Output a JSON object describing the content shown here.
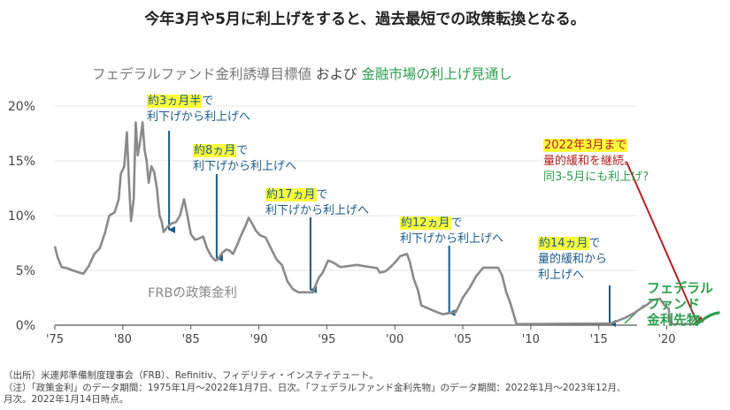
{
  "headline": "今年3月や5月に利上げをすると、過去最短での政策転換となる。",
  "chart_title": {
    "part1": "フェデラルファンド金利誘導目標値",
    "part2": "および",
    "part3": "金融市場の利上げ見通し"
  },
  "colors": {
    "policy_rate_line": "#8a8a8a",
    "futures_line": "#2e9e4f",
    "arrow_blue": "#1a5a86",
    "arrow_red": "#b32121",
    "highlight": "#ffff3a",
    "axis": "#555555"
  },
  "annotations": [
    {
      "highlight": "約3ヵ月半",
      "after": "で",
      "line2": "利下げから利上げへ"
    },
    {
      "highlight": "約8ヵ月",
      "after": "で",
      "line2": "利下げから利上げへ"
    },
    {
      "highlight": "約17ヵ月",
      "after": "で",
      "line2": "利下げから利上げへ"
    },
    {
      "highlight": "約12ヵ月",
      "after": "で",
      "line2": "利下げから利上げへ"
    },
    {
      "highlight": "約14ヵ月",
      "after": "で",
      "line2": "量的緩和から",
      "line3": "利上げへ"
    }
  ],
  "red_annotation": {
    "line1": "2022年3月まで",
    "line2": "量的緩和を継続。",
    "line3": "同3-5月にも利上げ?"
  },
  "series_labels": {
    "policy_rate": "FRBの政策金利",
    "futures_line1": "フェデラル",
    "futures_line2": "ファンド",
    "futures_line3": "金利先物"
  },
  "notes": {
    "source": "（出所）米連邦準備制度理事会（FRB）、Refinitiv、フィデリティ・インスティテュート。",
    "note1": "（注）「政策金利」のデータ期間：1975年1月～2022年1月7日、日次。「フェデラルファンド金利先物」のデータ期間：2022年1月～2023年12月、",
    "note2": "月次。2022年1月14日時点。"
  },
  "chart_data": {
    "type": "line",
    "title": "フェデラルファンド金利誘導目標値 および 金融市場の利上げ見通し",
    "xlabel": "",
    "ylabel": "",
    "xlim": [
      1975,
      2024
    ],
    "ylim": [
      0,
      20
    ],
    "x_ticks": [
      1975,
      1980,
      1985,
      1990,
      1995,
      2000,
      2005,
      2010,
      2015,
      2020
    ],
    "x_tick_labels": [
      "'75",
      "'80",
      "'85",
      "'90",
      "'95",
      "'00",
      "'05",
      "'10",
      "'15",
      "'20"
    ],
    "y_ticks": [
      0,
      5,
      10,
      15,
      20
    ],
    "y_tick_labels": [
      "0%",
      "5%",
      "10%",
      "15%",
      "20%"
    ],
    "series": [
      {
        "name": "FRBの政策金利",
        "x": [
          1975.0,
          1975.2,
          1975.5,
          1975.9,
          1976.3,
          1976.8,
          1977.1,
          1977.5,
          1977.9,
          1978.3,
          1978.7,
          1979.0,
          1979.4,
          1979.7,
          1979.85,
          1980.1,
          1980.3,
          1980.45,
          1980.6,
          1980.8,
          1980.95,
          1981.1,
          1981.3,
          1981.45,
          1981.6,
          1981.75,
          1981.9,
          1982.1,
          1982.3,
          1982.5,
          1982.7,
          1982.85,
          1983.0,
          1983.3,
          1983.6,
          1983.9,
          1984.2,
          1984.5,
          1984.75,
          1985.0,
          1985.3,
          1985.6,
          1985.9,
          1986.2,
          1986.5,
          1986.8,
          1987.0,
          1987.3,
          1987.6,
          1987.85,
          1988.1,
          1988.4,
          1988.7,
          1989.0,
          1989.25,
          1989.5,
          1989.8,
          1990.1,
          1990.5,
          1990.9,
          1991.3,
          1991.7,
          1992.1,
          1992.5,
          1992.9,
          1993.5,
          1994.0,
          1994.1,
          1994.4,
          1994.7,
          1995.1,
          1995.5,
          1996.0,
          1997.2,
          1998.7,
          1998.9,
          1999.3,
          1999.6,
          2000.0,
          2000.4,
          2000.9,
          2001.1,
          2001.4,
          2001.7,
          2001.95,
          2002.9,
          2003.5,
          2004.5,
          2005.0,
          2005.5,
          2006.0,
          2006.5,
          2007.6,
          2007.9,
          2008.2,
          2008.5,
          2008.95,
          2015.9,
          2016.9,
          2017.3,
          2017.6,
          2017.95,
          2018.2,
          2018.6,
          2018.95,
          2019.5,
          2019.7,
          2019.85,
          2020.15,
          2020.25,
          2022.0
        ],
        "values": [
          7.2,
          6.2,
          5.3,
          5.2,
          5.0,
          4.8,
          4.7,
          5.4,
          6.5,
          7.0,
          8.5,
          10.0,
          10.3,
          11.5,
          13.8,
          14.5,
          17.6,
          13.0,
          9.5,
          11.5,
          18.5,
          15.5,
          17.0,
          18.5,
          16.0,
          15.0,
          13.0,
          14.5,
          14.0,
          12.5,
          10.0,
          9.5,
          8.5,
          9.0,
          9.3,
          9.4,
          10.0,
          11.5,
          10.0,
          8.3,
          7.8,
          7.9,
          8.1,
          7.0,
          6.3,
          5.9,
          6.0,
          6.6,
          6.9,
          6.8,
          6.5,
          7.3,
          8.2,
          9.0,
          9.8,
          9.3,
          8.6,
          8.2,
          8.0,
          7.0,
          6.0,
          5.5,
          4.0,
          3.3,
          3.0,
          3.0,
          3.0,
          3.4,
          4.3,
          4.8,
          5.9,
          5.7,
          5.3,
          5.5,
          5.2,
          4.8,
          4.9,
          5.2,
          5.7,
          6.3,
          6.5,
          5.8,
          4.2,
          3.2,
          1.8,
          1.3,
          1.0,
          1.2,
          2.5,
          3.4,
          4.5,
          5.25,
          5.25,
          4.5,
          3.0,
          2.0,
          0.1,
          0.15,
          0.65,
          0.9,
          1.1,
          1.4,
          1.6,
          1.9,
          2.3,
          2.4,
          2.05,
          1.8,
          1.5,
          0.1,
          0.1
        ]
      },
      {
        "name": "フェデラルファンド金利先物",
        "x": [
          2022.0,
          2022.3,
          2022.6,
          2022.9,
          2023.2,
          2023.5,
          2023.9
        ],
        "values": [
          0.1,
          0.2,
          0.45,
          0.7,
          0.9,
          1.05,
          1.15
        ]
      }
    ],
    "annotation_arrows": [
      {
        "label": "約3ヵ月半",
        "x": 1983.4
      },
      {
        "label": "約8ヵ月",
        "x": 1986.9
      },
      {
        "label": "約17ヵ月",
        "x": 1993.8
      },
      {
        "label": "約12ヵ月",
        "x": 2004.0
      },
      {
        "label": "約14ヵ月",
        "x": 2015.8
      },
      {
        "label": "2022年3月まで",
        "x": 2022.2
      }
    ]
  }
}
